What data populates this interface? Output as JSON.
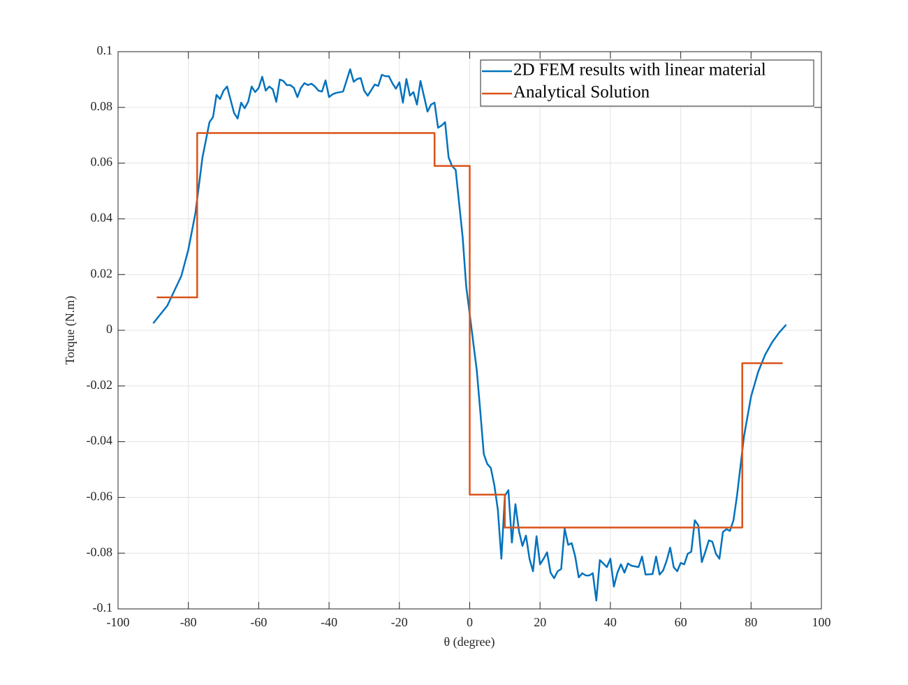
{
  "chart_data": {
    "type": "line",
    "xlabel": "θ (degree)",
    "ylabel": "Torque (N.m)",
    "xlim": [
      -100,
      100
    ],
    "xticks": [
      -100,
      -80,
      -60,
      -40,
      -20,
      0,
      20,
      40,
      60,
      80,
      100
    ],
    "ylim": [
      -0.1,
      0.1
    ],
    "yticks": [
      -0.1,
      -0.08,
      -0.06,
      -0.04,
      -0.02,
      0,
      0.02,
      0.04,
      0.06,
      0.08,
      0.1
    ],
    "grid": true,
    "legend": "upper right",
    "series": [
      {
        "name": "2D FEM results with linear material",
        "color": "#0072BD",
        "x": [
          -90,
          -86,
          -82,
          -80,
          -78,
          -76,
          -74,
          -73,
          -72,
          -71,
          -70,
          -69,
          -67,
          -66,
          -65,
          -64,
          -63,
          -62,
          -61,
          -60,
          -59,
          -58,
          -57,
          -56,
          -55,
          -54,
          -53,
          -52,
          -51,
          -50,
          -49,
          -48,
          -47,
          -46,
          -45,
          -44,
          -43,
          -42,
          -41,
          -40,
          -39,
          -38,
          -36,
          -34,
          -33,
          -32,
          -31,
          -30,
          -29,
          -27,
          -26,
          -25,
          -24,
          -23,
          -22,
          -21,
          -20,
          -19,
          -18,
          -17,
          -16,
          -15,
          -14,
          -13,
          -12,
          -11,
          -10,
          -9,
          -8,
          -7,
          -6,
          -5,
          -4,
          -2,
          -1,
          0,
          1,
          2,
          3,
          4,
          5,
          6,
          7,
          8,
          9,
          10,
          11,
          12,
          13,
          14,
          15,
          16,
          17,
          18,
          19,
          20,
          21,
          22,
          23,
          24,
          25,
          26,
          27,
          28,
          29,
          30,
          31,
          32,
          33,
          34,
          35,
          36,
          37,
          38,
          39,
          40,
          41,
          42,
          43,
          44,
          45,
          46,
          48,
          49,
          50,
          52,
          53,
          54,
          55,
          56,
          57,
          58,
          59,
          60,
          61,
          62,
          63,
          64,
          65,
          66,
          67,
          68,
          69,
          70,
          71,
          72,
          73,
          74,
          75,
          76,
          78,
          80,
          82,
          84,
          86,
          88,
          90
        ],
        "values": [
          0.0025,
          0.0088,
          0.0195,
          0.029,
          0.042,
          0.062,
          0.0747,
          0.0765,
          0.0845,
          0.083,
          0.086,
          0.0875,
          0.078,
          0.076,
          0.0817,
          0.0797,
          0.082,
          0.0875,
          0.0855,
          0.087,
          0.091,
          0.086,
          0.0875,
          0.0865,
          0.082,
          0.09,
          0.0895,
          0.088,
          0.088,
          0.087,
          0.0837,
          0.087,
          0.0887,
          0.088,
          0.0885,
          0.0875,
          0.086,
          0.0857,
          0.0897,
          0.0837,
          0.0847,
          0.0852,
          0.0857,
          0.0937,
          0.0892,
          0.0902,
          0.0905,
          0.086,
          0.0842,
          0.0882,
          0.0877,
          0.0917,
          0.0912,
          0.0912,
          0.0887,
          0.0867,
          0.089,
          0.0817,
          0.0902,
          0.0842,
          0.0855,
          0.081,
          0.0895,
          0.084,
          0.0785,
          0.081,
          0.0817,
          0.0727,
          0.0735,
          0.0747,
          0.062,
          0.0589,
          0.0576,
          0.0333,
          0.0158,
          0.0058,
          -0.0043,
          -0.0143,
          -0.029,
          -0.0444,
          -0.048,
          -0.0494,
          -0.0556,
          -0.0644,
          -0.082,
          -0.0594,
          -0.0574,
          -0.0762,
          -0.0624,
          -0.072,
          -0.0774,
          -0.0737,
          -0.082,
          -0.0865,
          -0.0739,
          -0.084,
          -0.082,
          -0.0797,
          -0.087,
          -0.089,
          -0.0865,
          -0.0857,
          -0.0712,
          -0.077,
          -0.0764,
          -0.0812,
          -0.0887,
          -0.0872,
          -0.088,
          -0.088,
          -0.0872,
          -0.097,
          -0.0825,
          -0.0837,
          -0.085,
          -0.082,
          -0.092,
          -0.087,
          -0.084,
          -0.087,
          -0.0837,
          -0.0845,
          -0.085,
          -0.0812,
          -0.0877,
          -0.0875,
          -0.0812,
          -0.0877,
          -0.0862,
          -0.0827,
          -0.078,
          -0.085,
          -0.0865,
          -0.0835,
          -0.084,
          -0.0802,
          -0.0795,
          -0.0682,
          -0.07,
          -0.0832,
          -0.0795,
          -0.0754,
          -0.0759,
          -0.0802,
          -0.082,
          -0.0724,
          -0.0714,
          -0.072,
          -0.0682,
          -0.0594,
          -0.038,
          -0.0238,
          -0.015,
          -0.0088,
          -0.0043,
          -0.0008,
          0.002
        ]
      },
      {
        "name": "Analytical Solution",
        "color": "#D95319",
        "x": [
          -89,
          -77.5,
          -77.5,
          -10,
          -10,
          0,
          0,
          10,
          10,
          77.5,
          77.5,
          89
        ],
        "values": [
          0.0118,
          0.0118,
          0.0708,
          0.0708,
          0.059,
          0.059,
          -0.059,
          -0.059,
          -0.0708,
          -0.0708,
          -0.0118,
          -0.0118
        ]
      }
    ]
  }
}
